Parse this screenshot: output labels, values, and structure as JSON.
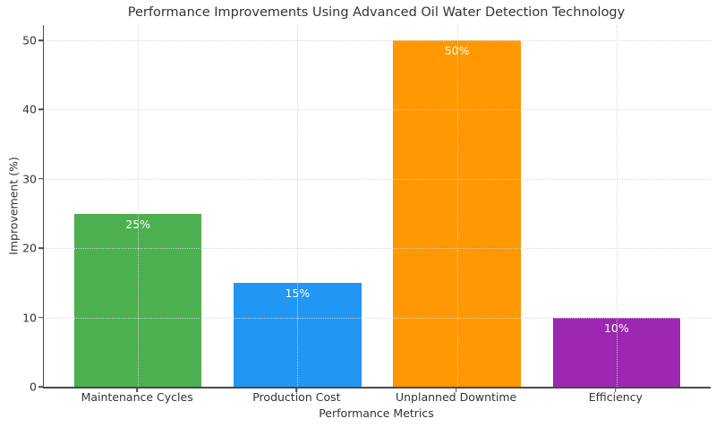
{
  "chart_data": {
    "type": "bar",
    "title": "Performance Improvements Using Advanced Oil Water Detection Technology",
    "xlabel": "Performance Metrics",
    "ylabel": "Improvement (%)",
    "categories": [
      "Maintenance Cycles",
      "Production Cost",
      "Unplanned Downtime",
      "Efficiency"
    ],
    "values": [
      25,
      15,
      50,
      10
    ],
    "value_labels": [
      "25%",
      "15%",
      "50%",
      "10%"
    ],
    "bar_colors": [
      "#4caf50",
      "#2196f3",
      "#ff9800",
      "#9c27b0"
    ],
    "yticks": [
      0,
      10,
      20,
      30,
      40,
      50
    ],
    "ylim": [
      0,
      52.2
    ],
    "grid": "dotted horizontal and vertical gridlines drawn above bars",
    "legend": "none"
  },
  "colors": {
    "background": "#ffffff",
    "axis_spine": "#4a4a4a",
    "gridline": "#d6d6d6",
    "text": "#333333",
    "value_label_text": "#ffffff"
  }
}
